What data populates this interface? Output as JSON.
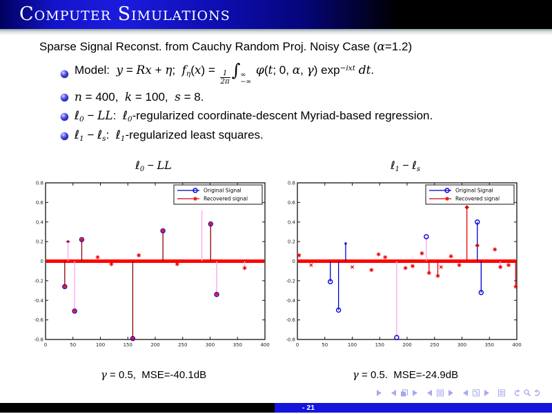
{
  "header": {
    "title": "Computer Simulations"
  },
  "content": {
    "subtitle": [
      {
        "t": "Sparse Signal Reconst. from Cauchy Random Proj. Noisy Case ("
      },
      {
        "t": "α",
        "s": "i"
      },
      {
        "t": "=1.2)"
      }
    ],
    "bullets": [
      [
        {
          "t": "Model:  "
        },
        {
          "t": "y",
          "s": "i"
        },
        {
          "t": " = "
        },
        {
          "t": "Rx",
          "s": "i"
        },
        {
          "t": " + "
        },
        {
          "t": "η",
          "s": "i"
        },
        {
          "t": ";  "
        },
        {
          "t": "f",
          "s": "i"
        },
        {
          "t": "η",
          "s": "sub"
        },
        {
          "t": "("
        },
        {
          "t": "x",
          "s": "i"
        },
        {
          "t": ") = "
        },
        {
          "num": "1",
          "den": "2π",
          "s": "frac"
        },
        {
          "t": "∫",
          "s": "int"
        },
        {
          "sup": "∞",
          "sub": "−∞",
          "s": "lim"
        },
        {
          "t": " "
        },
        {
          "t": "φ",
          "s": "i"
        },
        {
          "t": "("
        },
        {
          "t": "t",
          "s": "i"
        },
        {
          "t": "; 0, "
        },
        {
          "t": "α",
          "s": "i"
        },
        {
          "t": ", "
        },
        {
          "t": "γ",
          "s": "i"
        },
        {
          "t": ") exp"
        },
        {
          "t": "−ixt",
          "s": "sup"
        },
        {
          "t": " "
        },
        {
          "t": "dt",
          "s": "i"
        },
        {
          "t": "."
        }
      ],
      [
        {
          "t": "n",
          "s": "i"
        },
        {
          "t": " = 400,  "
        },
        {
          "t": "k",
          "s": "i"
        },
        {
          "t": " = 100,  "
        },
        {
          "t": "s",
          "s": "i"
        },
        {
          "t": " = 8."
        }
      ],
      [
        {
          "t": "ℓ",
          "s": "i"
        },
        {
          "t": "0",
          "s": "sub"
        },
        {
          "t": " − "
        },
        {
          "t": "LL",
          "s": "i"
        },
        {
          "t": ":  "
        },
        {
          "t": "ℓ",
          "s": "i"
        },
        {
          "t": "0",
          "s": "sub"
        },
        {
          "t": "-regularized coordinate-descent Myriad-based regression."
        }
      ],
      [
        {
          "t": "ℓ",
          "s": "i"
        },
        {
          "t": "1",
          "s": "sub"
        },
        {
          "t": " − "
        },
        {
          "t": "ℓ",
          "s": "i"
        },
        {
          "t": "s",
          "s": "sub"
        },
        {
          "t": ":  "
        },
        {
          "t": "ℓ",
          "s": "i"
        },
        {
          "t": "1",
          "s": "sub"
        },
        {
          "t": "-regularized least squares."
        }
      ]
    ]
  },
  "chart_data": [
    {
      "type": "stem",
      "title": "ℓ₀ − LL",
      "title_segments": [
        {
          "t": "ℓ",
          "s": "i"
        },
        {
          "t": "0",
          "s": "sub"
        },
        {
          "t": " − "
        },
        {
          "t": "LL",
          "s": "i"
        }
      ],
      "caption": "γ = 0.5, MSE=-40.1dB",
      "caption_segments": [
        {
          "t": "γ",
          "s": "i"
        },
        {
          "t": " = 0.5,  MSE=-40.1dB"
        }
      ],
      "xlim": [
        0,
        400
      ],
      "ylim": [
        -0.8,
        0.8
      ],
      "xticks": [
        0,
        50,
        100,
        150,
        200,
        250,
        300,
        350,
        400
      ],
      "yticks": [
        0.8,
        0.6,
        0.4,
        0.2,
        0,
        -0.2,
        -0.4,
        -0.6,
        -0.8
      ],
      "grid": false,
      "legend_position": "top-right",
      "legend": [
        {
          "label": "Original Signal",
          "line": "#0000bb",
          "marker": "blue-circle"
        },
        {
          "label": "Recovered signal",
          "line": "#cc0000",
          "marker": "red-star"
        }
      ],
      "baseline_y": 0,
      "colors": {
        "pink": "#ffa0f0",
        "darkred": "#8b0000",
        "blue": "#0000cc",
        "red": "#e00000",
        "baseline": "#ff0000"
      },
      "stems": [
        {
          "x": 35,
          "y": -0.26,
          "stem": "darkred",
          "markers": [
            "blue-circle",
            "red-star"
          ]
        },
        {
          "x": 41,
          "y": 0.2,
          "stem": "pink",
          "markers": [
            "blue-dot",
            "red-dash"
          ]
        },
        {
          "x": 53,
          "y": -0.51,
          "stem": "pink",
          "markers": [
            "blue-circle",
            "red-star"
          ]
        },
        {
          "x": 66,
          "y": 0.22,
          "stem": "darkred",
          "markers": [
            "blue-circle",
            "red-star"
          ]
        },
        {
          "x": 95,
          "y": 0.04,
          "stem": "none",
          "markers": [
            "red-star"
          ]
        },
        {
          "x": 120,
          "y": -0.03,
          "stem": "none",
          "markers": [
            "red-star"
          ]
        },
        {
          "x": 159,
          "y": -0.79,
          "stem": "darkred",
          "markers": [
            "blue-circle",
            "red-star"
          ]
        },
        {
          "x": 170,
          "y": 0.06,
          "stem": "none",
          "markers": [
            "red-star"
          ]
        },
        {
          "x": 214,
          "y": 0.31,
          "stem": "darkred",
          "markers": [
            "blue-circle",
            "red-star"
          ]
        },
        {
          "x": 240,
          "y": -0.03,
          "stem": "none",
          "markers": [
            "red-star"
          ]
        },
        {
          "x": 285,
          "y": 0.52,
          "stem": "pink",
          "markers": []
        },
        {
          "x": 301,
          "y": 0.38,
          "stem": "darkred",
          "markers": [
            "blue-circle",
            "red-star"
          ]
        },
        {
          "x": 312,
          "y": -0.34,
          "stem": "pink",
          "markers": [
            "blue-circle",
            "red-star"
          ]
        },
        {
          "x": 363,
          "y": -0.07,
          "stem": "pink",
          "markers": [
            "red-star"
          ]
        }
      ]
    },
    {
      "type": "stem",
      "title": "ℓ₁ − ℓₛ",
      "title_segments": [
        {
          "t": "ℓ",
          "s": "i"
        },
        {
          "t": "1",
          "s": "sub"
        },
        {
          "t": " − "
        },
        {
          "t": "ℓ",
          "s": "i"
        },
        {
          "t": "s",
          "s": "sub"
        }
      ],
      "caption": "γ = 0.5.  MSE=-24.9dB",
      "caption_segments": [
        {
          "t": "γ",
          "s": "i"
        },
        {
          "t": " = 0.5.  MSE=-24.9dB"
        }
      ],
      "xlim": [
        0,
        400
      ],
      "ylim": [
        -0.8,
        0.8
      ],
      "xticks": [
        0,
        50,
        100,
        150,
        200,
        250,
        300,
        350,
        400
      ],
      "yticks": [
        0.8,
        0.6,
        0.4,
        0.2,
        0,
        -0.2,
        -0.4,
        -0.6,
        -0.8
      ],
      "grid": false,
      "legend_position": "top-right",
      "legend": [
        {
          "label": "Original Signal",
          "line": "#0000bb",
          "marker": "blue-circle"
        },
        {
          "label": "Recovered signal",
          "line": "#cc0000",
          "marker": "red-star"
        }
      ],
      "baseline_y": 0,
      "colors": {
        "pink": "#ffa0f0",
        "darkred": "#8b0000",
        "blue": "#0000cc",
        "red": "#e00000",
        "baseline": "#ff0000"
      },
      "stems": [
        {
          "x": 3,
          "y": 0.06,
          "stem": "none",
          "markers": [
            "red-star"
          ]
        },
        {
          "x": 25,
          "y": -0.04,
          "stem": "none",
          "markers": [
            "red-x"
          ]
        },
        {
          "x": 60,
          "y": -0.21,
          "stem": "blue",
          "markers": [
            "blue-circle"
          ]
        },
        {
          "x": 75,
          "y": -0.5,
          "stem": "blue",
          "markers": [
            "blue-circle"
          ]
        },
        {
          "x": 88,
          "y": 0.18,
          "stem": "blue",
          "markers": [
            "blue-dot"
          ]
        },
        {
          "x": 100,
          "y": -0.06,
          "stem": "none",
          "markers": [
            "red-x"
          ]
        },
        {
          "x": 135,
          "y": -0.09,
          "stem": "none",
          "markers": [
            "red-star"
          ]
        },
        {
          "x": 148,
          "y": 0.07,
          "stem": "none",
          "markers": [
            "red-star"
          ]
        },
        {
          "x": 160,
          "y": 0.04,
          "stem": "none",
          "markers": [
            "red-star"
          ]
        },
        {
          "x": 181,
          "y": -0.78,
          "stem": "pink",
          "markers": [
            "blue-circle"
          ]
        },
        {
          "x": 197,
          "y": -0.07,
          "stem": "none",
          "markers": [
            "red-star"
          ]
        },
        {
          "x": 210,
          "y": -0.05,
          "stem": "none",
          "markers": [
            "red-star"
          ]
        },
        {
          "x": 227,
          "y": 0.08,
          "stem": "none",
          "markers": [
            "red-star"
          ]
        },
        {
          "x": 235,
          "y": 0.25,
          "stem": "pink",
          "markers": [
            "blue-circle"
          ]
        },
        {
          "x": 240,
          "y": -0.12,
          "stem": "red",
          "markers": [
            "red-star"
          ]
        },
        {
          "x": 256,
          "y": -0.15,
          "stem": "red",
          "markers": [
            "red-star"
          ]
        },
        {
          "x": 262,
          "y": -0.06,
          "stem": "none",
          "markers": [
            "red-x"
          ]
        },
        {
          "x": 280,
          "y": 0.05,
          "stem": "none",
          "markers": [
            "red-star"
          ]
        },
        {
          "x": 295,
          "y": -0.04,
          "stem": "none",
          "markers": [
            "red-star"
          ]
        },
        {
          "x": 309,
          "y": 0.55,
          "stem": "red",
          "markers": [
            "red-diamond"
          ]
        },
        {
          "x": 328,
          "y": 0.4,
          "stem": "blue",
          "markers": [
            "blue-circle"
          ]
        },
        {
          "x": 328,
          "y": 0.16,
          "stem": "none",
          "markers": [
            "red-diamond"
          ]
        },
        {
          "x": 335,
          "y": -0.32,
          "stem": "blue",
          "markers": [
            "blue-circle"
          ]
        },
        {
          "x": 360,
          "y": 0.12,
          "stem": "none",
          "markers": [
            "red-star"
          ]
        },
        {
          "x": 370,
          "y": -0.06,
          "stem": "pink",
          "markers": [
            "red-star"
          ]
        },
        {
          "x": 385,
          "y": -0.04,
          "stem": "none",
          "markers": [
            "red-star"
          ]
        },
        {
          "x": 398,
          "y": -0.26,
          "stem": "red",
          "markers": [
            "red-star"
          ]
        }
      ]
    }
  ],
  "nav": {
    "color": "#a6a8ee",
    "items": [
      "slide-next-icon",
      "frame-prev-icon",
      "frame-icon",
      "frame-next-icon",
      "section-prev-icon",
      "section-icon",
      "section-next-icon",
      "subsection-prev-icon",
      "subsection-icon",
      "subsection-next-icon",
      "appendix-icon",
      "history-back-icon",
      "search-icon",
      "history-forward-icon"
    ]
  },
  "footer": {
    "page_label": "- 21"
  }
}
